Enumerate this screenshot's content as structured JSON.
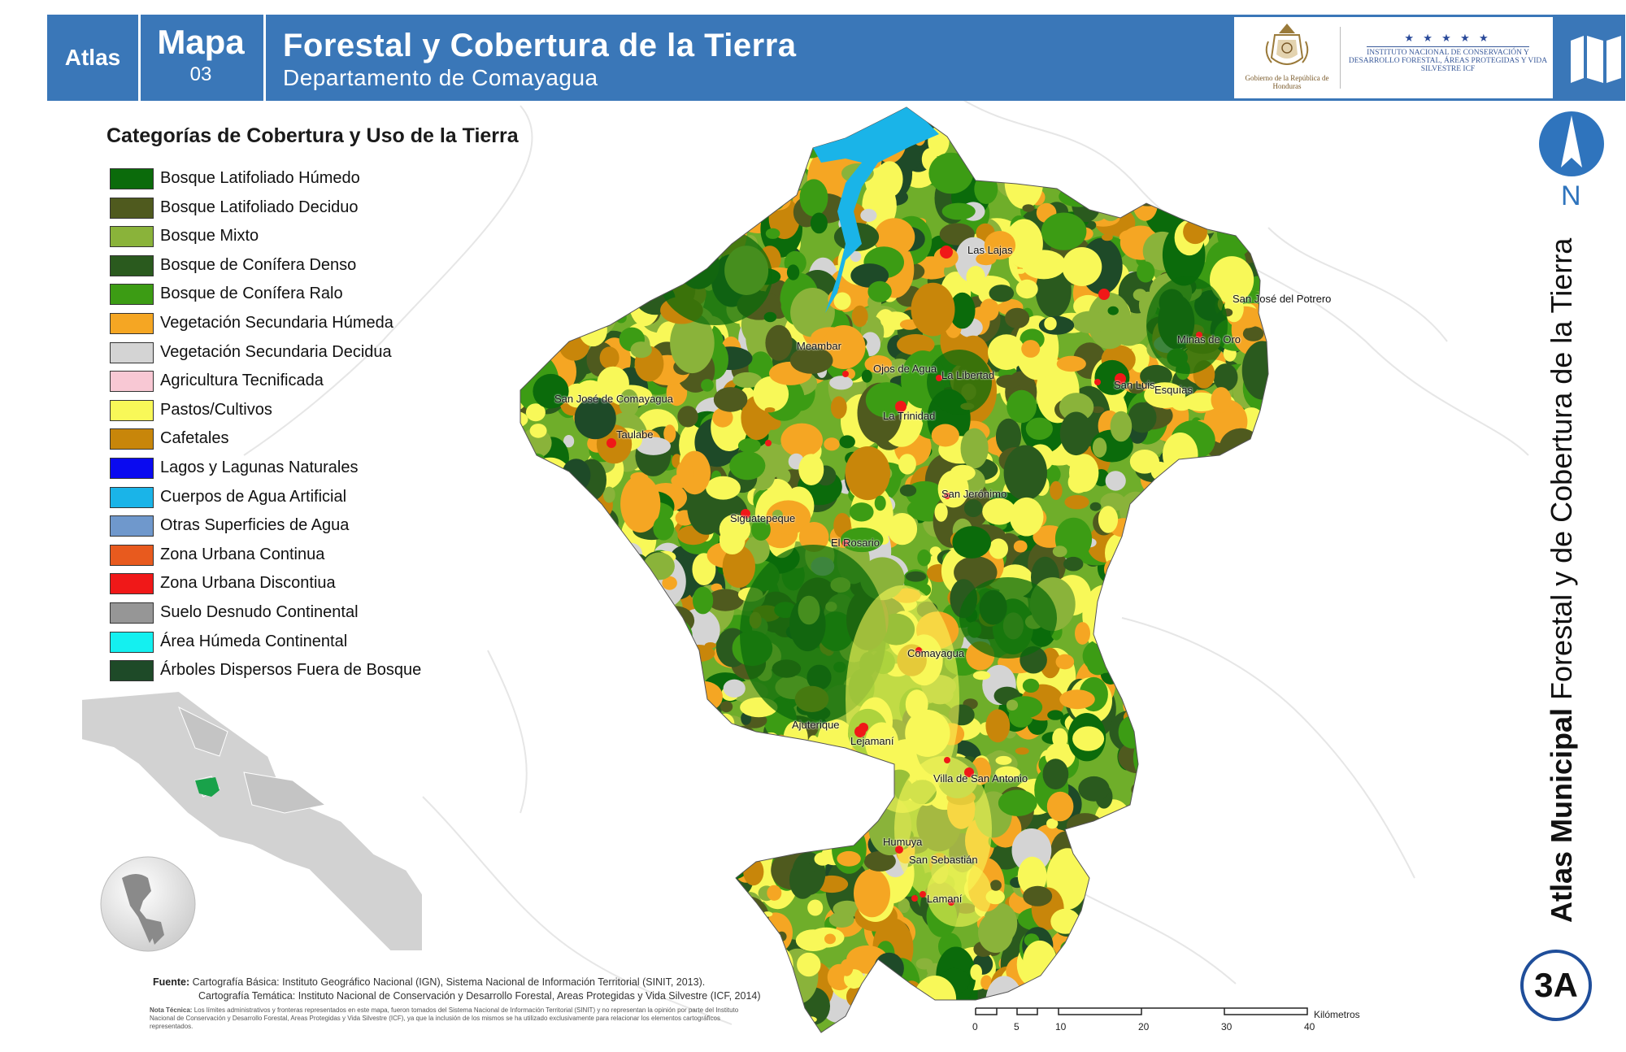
{
  "header": {
    "atlas_label": "Atlas",
    "mapa_label": "Mapa",
    "map_number": "03",
    "title": "Forestal y Cobertura de la Tierra",
    "subtitle": "Departamento de Comayagua",
    "gov_logo_text": "Gobierno de la República de Honduras",
    "icf_stars": "★ ★ ★ ★ ★",
    "icf_text": "INSTITUTO NACIONAL DE CONSERVACIÓN Y DESARROLLO FORESTAL, ÁREAS PROTEGIDAS Y VIDA SILVESTRE ICF",
    "bar_color": "#3a77b8"
  },
  "legend": {
    "title": "Categorías de Cobertura y Uso de la Tierra",
    "items": [
      {
        "label": "Bosque Latifoliado Húmedo",
        "color": "#0b6b0b"
      },
      {
        "label": "Bosque Latifoliado Deciduo",
        "color": "#4f5a1e"
      },
      {
        "label": "Bosque Mixto",
        "color": "#8ab33a"
      },
      {
        "label": "Bosque de Conífera Denso",
        "color": "#2a5a1e"
      },
      {
        "label": "Bosque de Conífera Ralo",
        "color": "#3c9c14"
      },
      {
        "label": "Vegetación Secundaria Húmeda",
        "color": "#f5a623"
      },
      {
        "label": "Vegetación Secundaria Decidua",
        "color": "#d4d4d4"
      },
      {
        "label": "Agricultura Tecnificada",
        "color": "#f8c8d4"
      },
      {
        "label": "Pastos/Cultivos",
        "color": "#f8f858"
      },
      {
        "label": "Cafetales",
        "color": "#c8860a"
      },
      {
        "label": "Lagos y Lagunas Naturales",
        "color": "#0a0af0"
      },
      {
        "label": "Cuerpos de Agua Artificial",
        "color": "#1ab4e8"
      },
      {
        "label": "Otras Superficies de Agua",
        "color": "#6f98cc"
      },
      {
        "label": "Zona Urbana Continua",
        "color": "#e85a1e"
      },
      {
        "label": "Zona Urbana Discontiua",
        "color": "#f01818"
      },
      {
        "label": "Suelo Desnudo Continental",
        "color": "#969696"
      },
      {
        "label": "Área Húmeda Continental",
        "color": "#14f0f0"
      },
      {
        "label": "Árboles Dispersos Fuera de Bosque",
        "color": "#1e4a28"
      }
    ]
  },
  "places": [
    "Las Lajas",
    "San José del Potrero",
    "Minas de Oro",
    "Meambar",
    "Ojos de Agua",
    "La Libertad",
    "San Luis",
    "Esquías",
    "San José de Comayagua",
    "La Trinidad",
    "Taulabe",
    "San Jerónimo",
    "Siguatepeque",
    "El Rosario",
    "Comayagua",
    "Ajuterique",
    "Lejamaní",
    "Villa de San Antonio",
    "Humuya",
    "San Sebastián",
    "Lamaní"
  ],
  "north_label": "N",
  "side_title": {
    "bold": "Atlas Municipal",
    "rest": "Forestal y de Cobertura de la Tierra"
  },
  "badge": "3A",
  "source": {
    "label": "Fuente:",
    "line1": "Cartografía Básica: Instituto Geográfico Nacional (IGN), Sistema Nacional de Información Territorial (SINIT, 2013).",
    "line2": "Cartografía Temática: Instituto Nacional de Conservación y Desarrollo Forestal, Areas Protegidas y Vida Silvestre (ICF, 2014)",
    "note_label": "Nota Técnica:",
    "note": "Los límites administrativos y fronteras representados en este mapa, fueron tomados del Sistema Nacional de Información Territorial (SINIT) y no representan la opinión por parte del Instituto Nacional de Conservación y Desarrollo Forestal, Areas Protegidas y Vida Silvestre (ICF), ya que la inclusión de los mismos se ha utilizado exclusivamente para relacionar los elementos cartográficos representados."
  },
  "scale": {
    "unit": "Kilómetros",
    "ticks": [
      "0",
      "5",
      "10",
      "20",
      "30",
      "40"
    ]
  }
}
